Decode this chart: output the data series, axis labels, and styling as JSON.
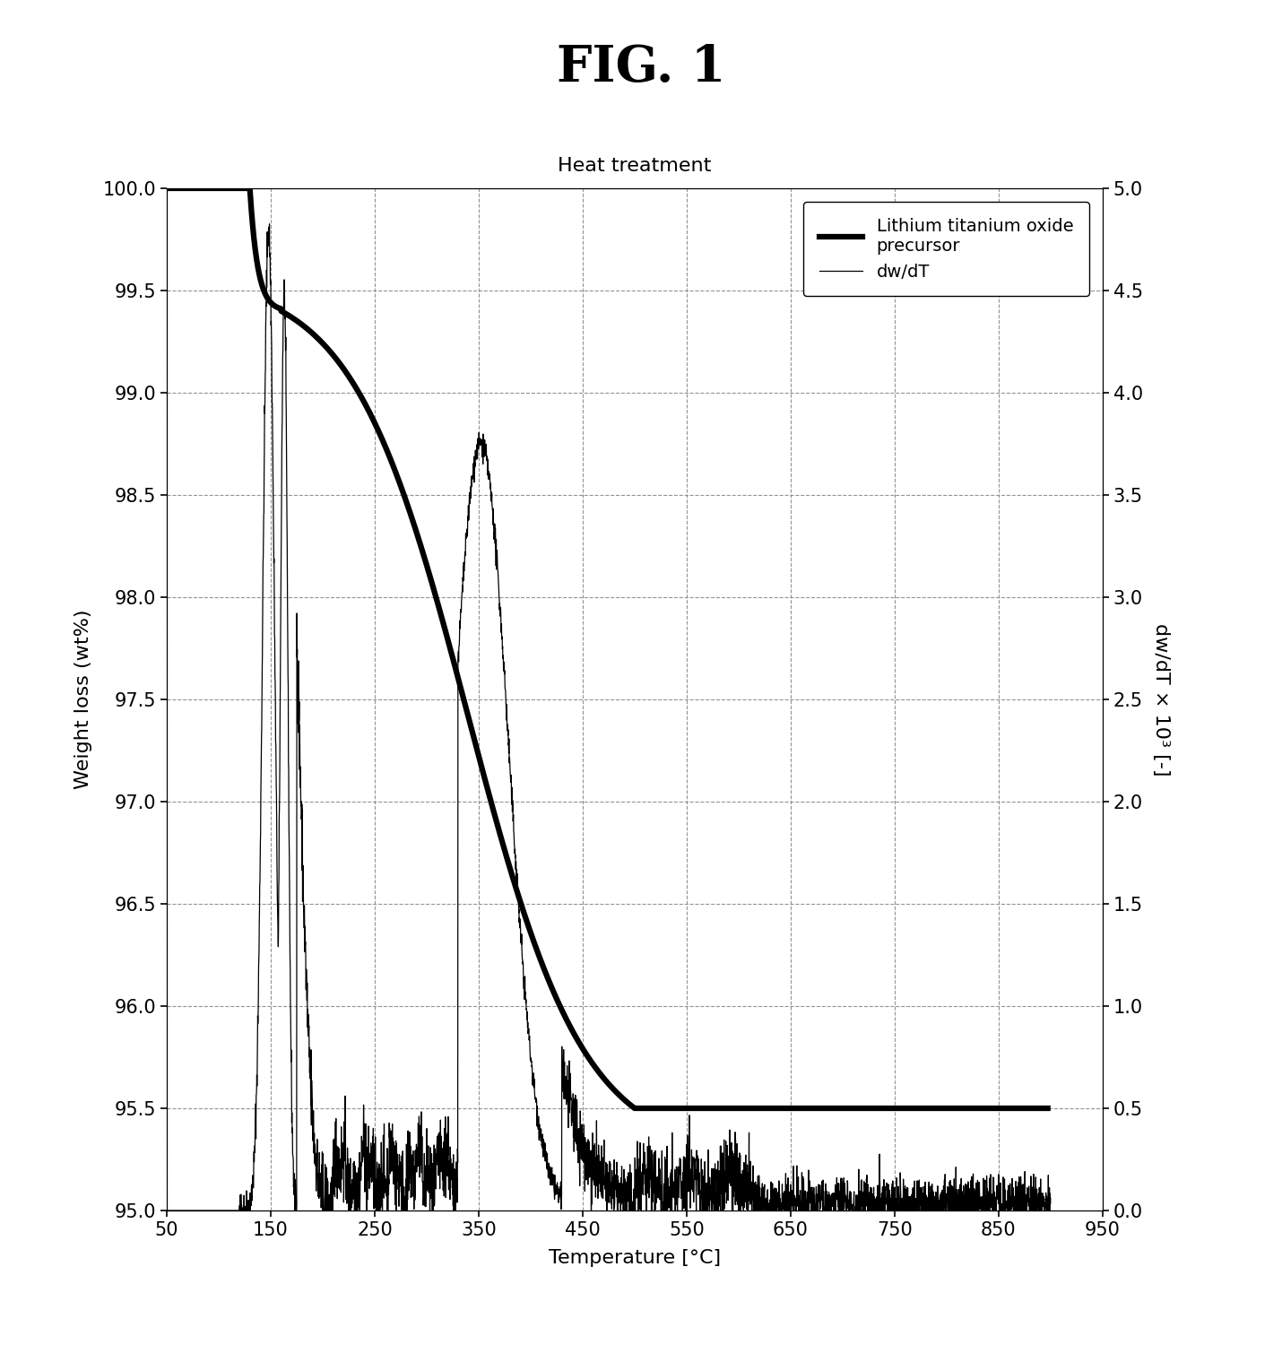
{
  "title": "FIG. 1",
  "subtitle": "Heat treatment",
  "xlabel": "Temperature [°C]",
  "ylabel_left": "Weight loss (wt%)",
  "ylabel_right": "dw/dT × 10³ [-]",
  "xlim": [
    50,
    950
  ],
  "ylim_left": [
    95.0,
    100.0
  ],
  "ylim_right": [
    0.0,
    5.0
  ],
  "xticks": [
    50,
    150,
    250,
    350,
    450,
    550,
    650,
    750,
    850,
    950
  ],
  "yticks_left": [
    95.0,
    95.5,
    96.0,
    96.5,
    97.0,
    97.5,
    98.0,
    98.5,
    99.0,
    99.5,
    100.0
  ],
  "yticks_right": [
    0.0,
    0.5,
    1.0,
    1.5,
    2.0,
    2.5,
    3.0,
    3.5,
    4.0,
    4.5,
    5.0
  ],
  "background_color": "#ffffff",
  "grid_color": "#888888",
  "legend_label_thick": "Lithium titanium oxide\nprecursor",
  "legend_label_thin": "dw/dT",
  "line_color": "#000000",
  "fig_title_fontsize": 40,
  "subtitle_fontsize": 16,
  "tick_fontsize": 15,
  "label_fontsize": 16,
  "legend_fontsize": 14
}
